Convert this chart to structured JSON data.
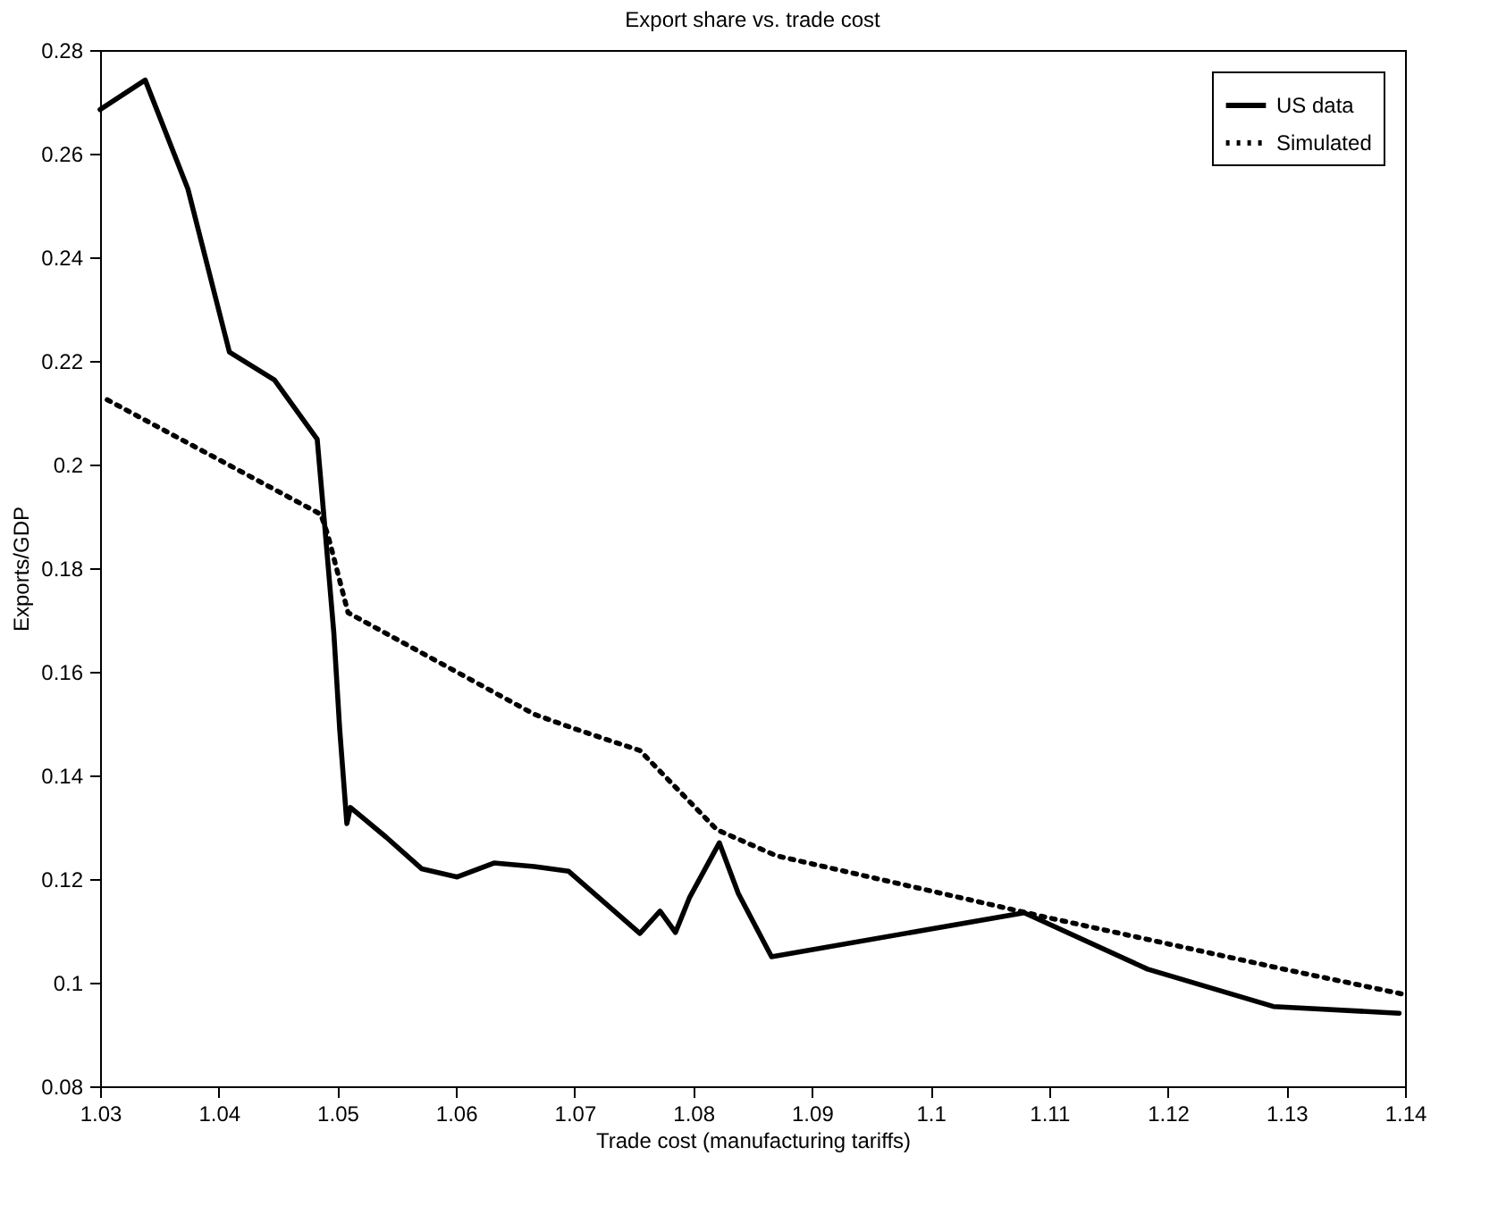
{
  "chart_data": {
    "type": "line",
    "title": "Export share vs. trade cost",
    "xlabel": "Trade cost (manufacturing tariffs)",
    "ylabel": "Exports/GDP",
    "xlim": [
      1.03,
      1.14
    ],
    "xticks": [
      1.03,
      1.04,
      1.05,
      1.06,
      1.07,
      1.08,
      1.09,
      1.1,
      1.11,
      1.12,
      1.13,
      1.14
    ],
    "ylim": [
      0.08,
      0.28
    ],
    "yticks": [
      0.08,
      0.1,
      0.12,
      0.14,
      0.16,
      0.18,
      0.2,
      0.22,
      0.24,
      0.26,
      0.28
    ],
    "grid": false,
    "legend": "top right",
    "series": [
      {
        "name": "US data",
        "color": "#000000",
        "line_style": "solid",
        "x": [
          1.03,
          1.0338,
          1.0374,
          1.0409,
          1.0447,
          1.0483,
          1.0489,
          1.0497,
          1.0502,
          1.0508,
          1.0511,
          1.0541,
          1.0571,
          1.0601,
          1.0632,
          1.0666,
          1.0695,
          1.0755,
          1.0772,
          1.0785,
          1.0797,
          1.0822,
          1.0838,
          1.0866,
          1.1079,
          1.1183,
          1.1289,
          1.1395
        ],
        "values": [
          0.2685,
          0.2742,
          0.2532,
          0.2217,
          0.2163,
          0.2049,
          0.1891,
          0.1676,
          0.1488,
          0.1307,
          0.1338,
          0.1281,
          0.122,
          0.1204,
          0.1231,
          0.1224,
          0.1215,
          0.1095,
          0.1138,
          0.1097,
          0.1165,
          0.127,
          0.1172,
          0.105,
          0.1135,
          0.1026,
          0.0954,
          0.0941
        ]
      },
      {
        "name": "Simulated",
        "color": "#000000",
        "line_style": "dotted",
        "x": [
          1.0306,
          1.0486,
          1.0492,
          1.0509,
          1.0666,
          1.07,
          1.0755,
          1.082,
          1.087,
          1.11,
          1.12,
          1.13,
          1.14
        ],
        "values": [
          0.2125,
          0.1904,
          0.1864,
          0.1714,
          0.1518,
          0.149,
          0.1448,
          0.1295,
          0.1245,
          0.1125,
          0.1075,
          0.1025,
          0.0977
        ]
      }
    ]
  }
}
